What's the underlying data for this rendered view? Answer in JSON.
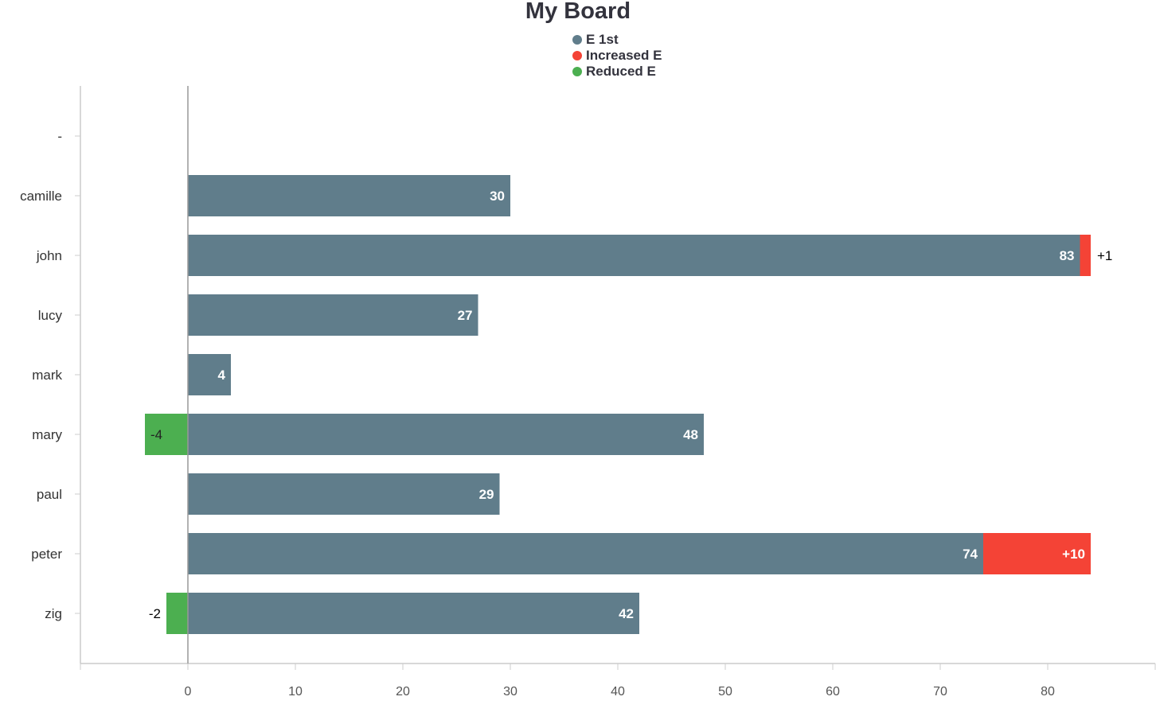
{
  "chart_data": {
    "type": "bar",
    "orientation": "horizontal",
    "stacked": true,
    "title": "My Board",
    "categories": [
      "-",
      "camille",
      "john",
      "lucy",
      "mark",
      "mary",
      "paul",
      "peter",
      "zig"
    ],
    "series": [
      {
        "name": "E 1st",
        "color": "#607d8b",
        "values": [
          null,
          30,
          83,
          27,
          4,
          48,
          29,
          74,
          42
        ],
        "labels": [
          "",
          "30",
          "83",
          "27",
          "4",
          "48",
          "29",
          "74",
          "42"
        ]
      },
      {
        "name": "Increased E",
        "color": "#f44336",
        "values": [
          null,
          null,
          1,
          null,
          null,
          null,
          null,
          10,
          null
        ],
        "labels": [
          "",
          "",
          "+1",
          "",
          "",
          "",
          "",
          "+10",
          ""
        ]
      },
      {
        "name": "Reduced E",
        "color": "#4caf50",
        "values": [
          null,
          null,
          null,
          null,
          null,
          -4,
          null,
          null,
          -2
        ],
        "labels": [
          "",
          "",
          "",
          "",
          "",
          "-4",
          "",
          "",
          "-2"
        ]
      }
    ],
    "xlim": [
      -10,
      90
    ],
    "xticks": [
      0,
      10,
      20,
      30,
      40,
      50,
      60,
      70,
      80
    ],
    "legend_position": "top-center",
    "grid": false
  }
}
